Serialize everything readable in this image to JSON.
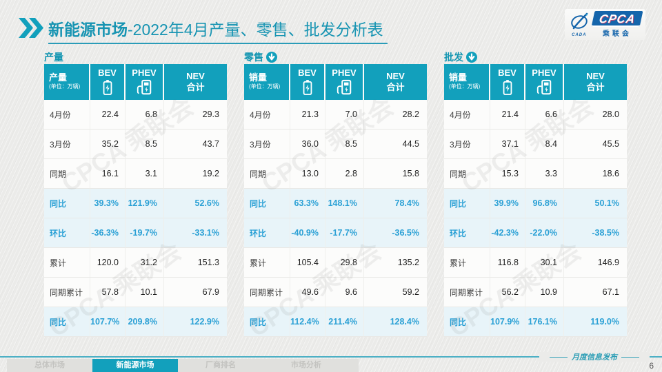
{
  "header": {
    "title_emphasis": "新能源市场",
    "title_rest": "-2022年4月产量、零售、批发分析表"
  },
  "logo": {
    "name": "CPCA",
    "subtitle": "乘联会",
    "emblem_text": "CADA"
  },
  "watermark": "CPCA 乘联会",
  "colors": {
    "teal": "#12a0bc",
    "title_teal": "#1794b2",
    "accent_blue": "#2aa0d5",
    "highlight_bg": "#e8f4f9",
    "logo_blue": "#1565ab"
  },
  "tables": [
    {
      "section_label": "产量",
      "trend": null,
      "header": {
        "label": "产量",
        "unit": "(单位：万辆)",
        "col1": "BEV",
        "col2": "PHEV",
        "col3_line1": "NEV",
        "col3_line2": "合计"
      },
      "rows": [
        {
          "label": "4月份",
          "values": [
            "22.4",
            "6.8",
            "29.3"
          ],
          "highlight": false
        },
        {
          "label": "3月份",
          "values": [
            "35.2",
            "8.5",
            "43.7"
          ],
          "highlight": false
        },
        {
          "label": "同期",
          "values": [
            "16.1",
            "3.1",
            "19.2"
          ],
          "highlight": false
        },
        {
          "label": "同比",
          "values": [
            "39.3%",
            "121.9%",
            "52.6%"
          ],
          "highlight": true
        },
        {
          "label": "环比",
          "values": [
            "-36.3%",
            "-19.7%",
            "-33.1%"
          ],
          "highlight": true
        },
        {
          "label": "累计",
          "values": [
            "120.0",
            "31.2",
            "151.3"
          ],
          "highlight": false
        },
        {
          "label": "同期累计",
          "values": [
            "57.8",
            "10.1",
            "67.9"
          ],
          "highlight": false
        },
        {
          "label": "同比",
          "values": [
            "107.7%",
            "209.8%",
            "122.9%"
          ],
          "highlight": true
        }
      ]
    },
    {
      "section_label": "零售",
      "trend": "down",
      "header": {
        "label": "销量",
        "unit": "(单位：万辆)",
        "col1": "BEV",
        "col2": "PHEV",
        "col3_line1": "NEV",
        "col3_line2": "合计"
      },
      "rows": [
        {
          "label": "4月份",
          "values": [
            "21.3",
            "7.0",
            "28.2"
          ],
          "highlight": false
        },
        {
          "label": "3月份",
          "values": [
            "36.0",
            "8.5",
            "44.5"
          ],
          "highlight": false
        },
        {
          "label": "同期",
          "values": [
            "13.0",
            "2.8",
            "15.8"
          ],
          "highlight": false
        },
        {
          "label": "同比",
          "values": [
            "63.3%",
            "148.1%",
            "78.4%"
          ],
          "highlight": true
        },
        {
          "label": "环比",
          "values": [
            "-40.9%",
            "-17.7%",
            "-36.5%"
          ],
          "highlight": true
        },
        {
          "label": "累计",
          "values": [
            "105.4",
            "29.8",
            "135.2"
          ],
          "highlight": false
        },
        {
          "label": "同期累计",
          "values": [
            "49.6",
            "9.6",
            "59.2"
          ],
          "highlight": false
        },
        {
          "label": "同比",
          "values": [
            "112.4%",
            "211.4%",
            "128.4%"
          ],
          "highlight": true
        }
      ]
    },
    {
      "section_label": "批发",
      "trend": "down",
      "header": {
        "label": "销量",
        "unit": "(单位：万辆)",
        "col1": "BEV",
        "col2": "PHEV",
        "col3_line1": "NEV",
        "col3_line2": "合计"
      },
      "rows": [
        {
          "label": "4月份",
          "values": [
            "21.4",
            "6.6",
            "28.0"
          ],
          "highlight": false
        },
        {
          "label": "3月份",
          "values": [
            "37.1",
            "8.4",
            "45.5"
          ],
          "highlight": false
        },
        {
          "label": "同期",
          "values": [
            "15.3",
            "3.3",
            "18.6"
          ],
          "highlight": false
        },
        {
          "label": "同比",
          "values": [
            "39.9%",
            "96.8%",
            "50.1%"
          ],
          "highlight": true
        },
        {
          "label": "环比",
          "values": [
            "-42.3%",
            "-22.0%",
            "-38.5%"
          ],
          "highlight": true
        },
        {
          "label": "累计",
          "values": [
            "116.8",
            "30.1",
            "146.9"
          ],
          "highlight": false
        },
        {
          "label": "同期累计",
          "values": [
            "56.2",
            "10.9",
            "67.1"
          ],
          "highlight": false
        },
        {
          "label": "同比",
          "values": [
            "107.9%",
            "176.1%",
            "119.0%"
          ],
          "highlight": true
        }
      ]
    }
  ],
  "footer": {
    "tabs": [
      {
        "label": "总体市场",
        "active": false
      },
      {
        "label": "新能源市场",
        "active": true
      },
      {
        "label": "厂商排名",
        "active": false
      },
      {
        "label": "市场分析",
        "active": false
      }
    ],
    "note": "月度信息发布",
    "page_number": "6"
  }
}
